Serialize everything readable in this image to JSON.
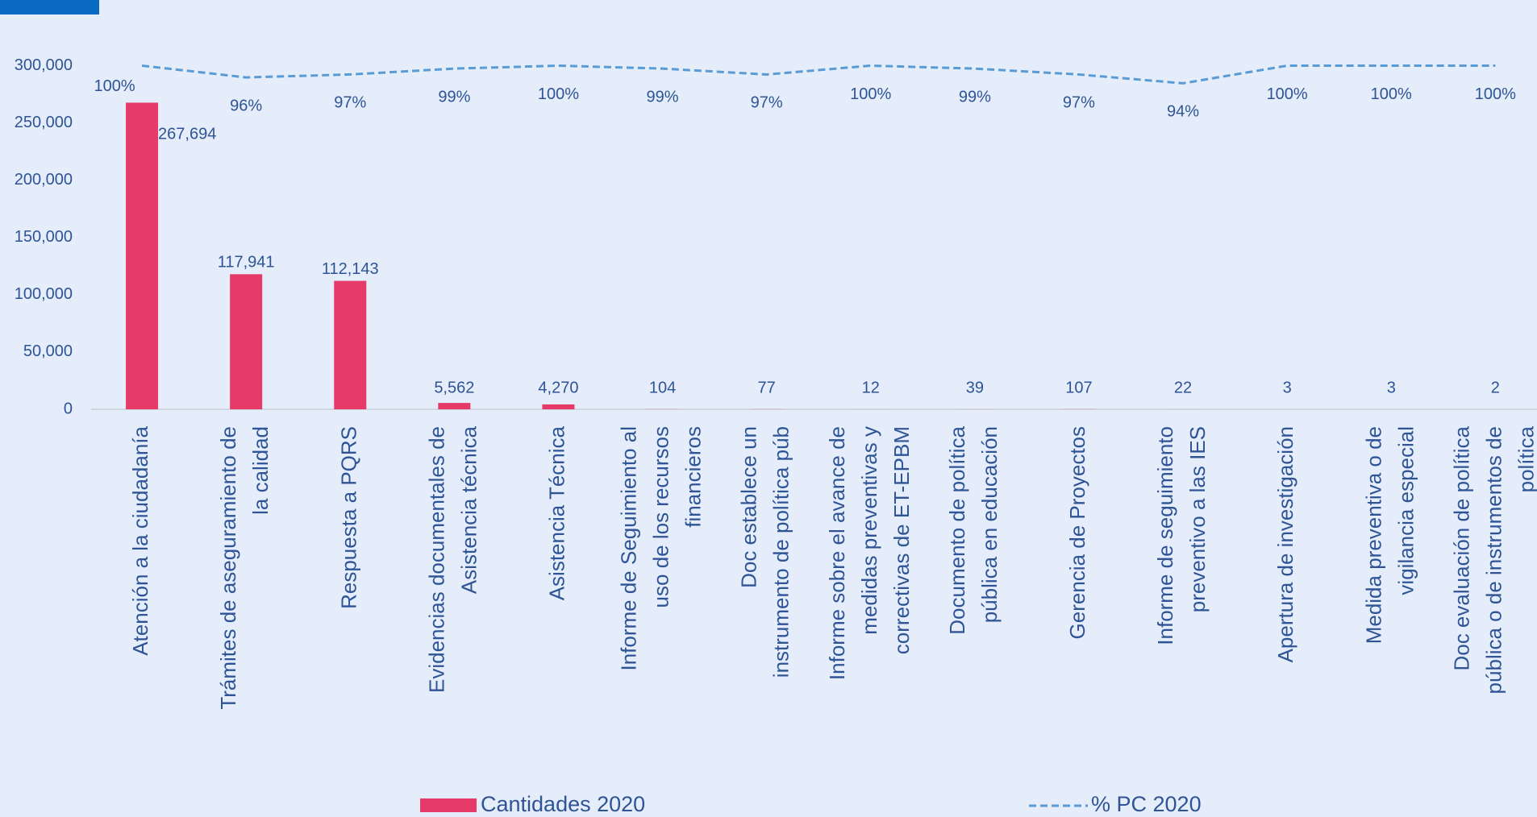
{
  "chart_data": {
    "type": "bar",
    "categories": [
      "Atención a la ciudadanía",
      "Trámites de aseguramiento de la calidad",
      "Respuesta a PQRS",
      "Evidencias documentales de Asistencia técnica",
      "Asistencia Técnica",
      "Informe de Seguimiento al uso de los recursos financieros",
      "Doc  establece un instrumento de política púb",
      "Informe sobre el avance de medidas preventivas y correctivas de ET-EPBM",
      "Documento de política pública en educación",
      "Gerencia de Proyectos",
      "Informe de seguimiento preventivo a las IES",
      "Apertura de investigación",
      "Medida preventiva o de vigilancia especial",
      "Doc evaluación de política pública o de instrumentos de política"
    ],
    "series": [
      {
        "name": "Cantidades 2020",
        "color": "#e63a69",
        "values": [
          267694,
          117941,
          112143,
          5562,
          4270,
          104,
          77,
          12,
          39,
          107,
          22,
          3,
          3,
          2
        ],
        "value_labels": [
          "267,694",
          "117,941",
          "112,143",
          "5,562",
          "4,270",
          "104",
          "77",
          "12",
          "39",
          "107",
          "22",
          "3",
          "3",
          "2"
        ]
      },
      {
        "name": "% PC 2020",
        "color": "#5b9bd5",
        "type": "line",
        "axis": "y2",
        "dashed": true,
        "values": [
          100,
          96,
          97,
          99,
          100,
          99,
          97,
          100,
          99,
          97,
          94,
          100,
          100,
          100
        ],
        "value_labels": [
          "100%",
          "96%",
          "97%",
          "99%",
          "100%",
          "99%",
          "97%",
          "100%",
          "99%",
          "97%",
          "94%",
          "100%",
          "100%",
          "100%"
        ]
      }
    ],
    "ylim": [
      0,
      300000
    ],
    "yticks": [
      0,
      {
        "value": 50000,
        "label": "50,000"
      },
      {
        "value": 100000,
        "label": "100,000"
      },
      {
        "value": 150000,
        "label": "150,000"
      },
      {
        "value": 200000,
        "label": "200,000"
      },
      {
        "value": 250000,
        "label": "250,000"
      },
      {
        "value": 300000,
        "label": "300,000"
      }
    ],
    "y2lim": [
      -17,
      100
    ],
    "legend": "bottom",
    "grid": false
  }
}
